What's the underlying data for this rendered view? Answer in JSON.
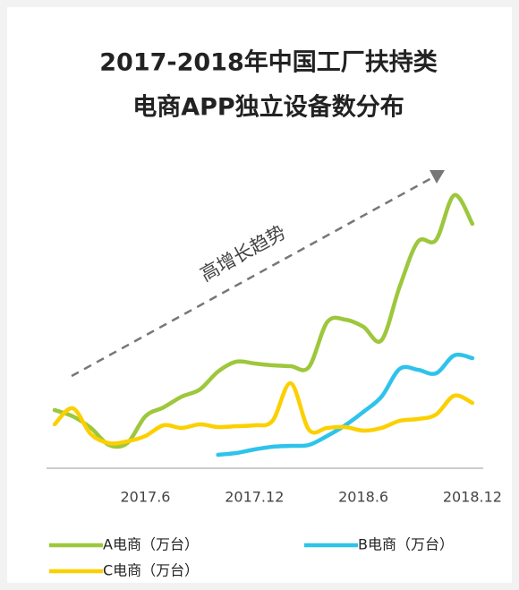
{
  "chart_data": {
    "type": "line",
    "title": [
      "2017-2018年中国工厂扶持类",
      "电商APP独立设备数分布"
    ],
    "annotation": "高增长趋势",
    "categories": [
      null,
      null,
      null,
      null,
      null,
      "2017.6",
      null,
      null,
      null,
      null,
      null,
      "2017.12",
      null,
      null,
      null,
      null,
      null,
      "2018.6",
      null,
      null,
      null,
      null,
      null,
      "2018.12"
    ],
    "series": [
      {
        "name": "A电商（万台）",
        "color": "#9dc73c",
        "values": [
          62,
          55,
          42,
          23,
          25,
          55,
          65,
          77,
          85,
          105,
          116,
          114,
          112,
          111,
          110,
          160,
          163,
          155,
          140,
          200,
          250,
          252,
          302,
          270
        ]
      },
      {
        "name": "B电商（万台）",
        "color": "#2ec3ea",
        "values": [
          null,
          null,
          null,
          null,
          null,
          null,
          null,
          null,
          null,
          12,
          14,
          18,
          21,
          22,
          23,
          33,
          45,
          60,
          77,
          108,
          107,
          103,
          123,
          120
        ]
      },
      {
        "name": "C电商（万台）",
        "color": "#fcd000",
        "values": [
          46,
          64,
          35,
          25,
          27,
          33,
          45,
          42,
          46,
          43,
          44,
          45,
          50,
          92,
          40,
          42,
          43,
          39,
          42,
          50,
          52,
          57,
          78,
          70
        ]
      }
    ],
    "ylim": [
      0,
      350
    ]
  }
}
